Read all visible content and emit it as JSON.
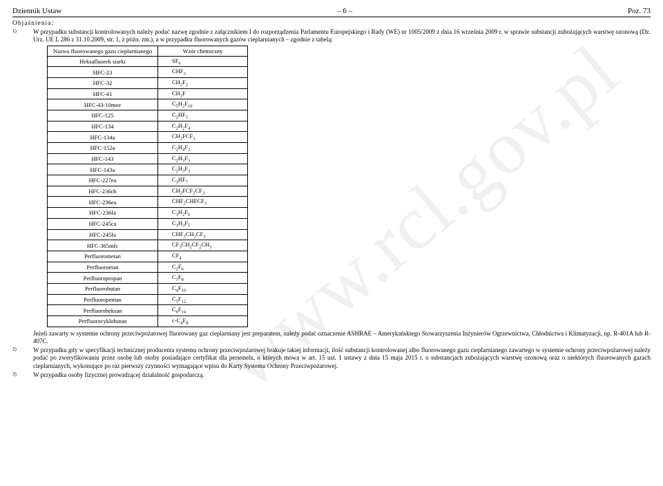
{
  "watermark": "www.rcl.gov.pl",
  "header": {
    "left": "Dziennik Ustaw",
    "center": "– 6 –",
    "right": "Poz. 73"
  },
  "section_title": "Objaśnienia:",
  "notes": {
    "n1_num": "1)",
    "n1a": "W przypadku substancji kontrolowanych należy podać nazwę zgodnie z załącznikiem I do rozporządzenia Parlamentu Europejskiego i Rady (WE) nr 1005/2009 z dnia 16 września 2009 r. w sprawie substancji zubożających warstwę ozonową (Dz. Urz. UE L 286 z 31.10.2009, str. 1, z późn. zm.), a w przypadku fluorowanych gazów cieplarnianych – zgodnie z tabelą:",
    "n1b": "Jeżeli zawarty w systemie ochrony przeciwpożarowej fluorowany gaz cieplarniany jest preparatem, należy podać oznaczenie ASHRAE – Amerykańskiego Stowarzyszenia Inżynierów Ogrzewnictwa, Chłodnictwa i Klimatyzacji, np. R-401A lub R-407C.",
    "n2_num": "2)",
    "n2": "W przypadku gdy w specyfikacji technicznej producenta systemu ochrony przeciwpożarowej brakuje takiej informacji, ilość substancji kontrolowanej albo fluorowanego gazu cieplarnianego zawartego w systemie ochrony przeciwpożarowej należy podać po zweryfikowaniu przez osobę lub osoby posiadające certyfikat dla personelu, o których mowa w art. 15 ust. 1 ustawy z dnia 15 maja 2015 r. o substancjach zubożających warstwę ozonową oraz o niektórych fluorowanych gazach cieplarnianych, wykonujące po raz pierwszy czynności wymagające wpisu do Karty Systemu Ochrony Przeciwpożarowej.",
    "n3_num": "3)",
    "n3": "W przypadku osoby fizycznej prowadzącej działalność gospodarczą."
  },
  "table": {
    "head_name": "Nazwa fluorowanego gazu cieplarnianego",
    "head_formula": "Wzór chemiczny",
    "rows": [
      {
        "name": "Heksafluorek siarki",
        "formula": "SF<sub>6</sub>"
      },
      {
        "name": "HFC-23",
        "formula": "CHF<sub>3</sub>"
      },
      {
        "name": "HFC-32",
        "formula": "CH<sub>2</sub>F<sub>2</sub>"
      },
      {
        "name": "HFC-41",
        "formula": "CH<sub>3</sub>F"
      },
      {
        "name": "HFC-43-10mee",
        "formula": "C<sub>5</sub>H<sub>2</sub>F<sub>10</sub>"
      },
      {
        "name": "HFC-125",
        "formula": "C<sub>2</sub>HF<sub>5</sub>"
      },
      {
        "name": "HFC-134",
        "formula": "C<sub>2</sub>H<sub>2</sub>F<sub>4</sub>"
      },
      {
        "name": "HFC-134a",
        "formula": "CH<sub>2</sub>FCF<sub>3</sub>"
      },
      {
        "name": "HFC-152a",
        "formula": "C<sub>2</sub>H<sub>4</sub>F<sub>2</sub>"
      },
      {
        "name": "HFC-143",
        "formula": "C<sub>2</sub>H<sub>3</sub>F<sub>3</sub>"
      },
      {
        "name": "HFC-143a",
        "formula": "C<sub>2</sub>H<sub>3</sub>F<sub>3</sub>"
      },
      {
        "name": "HFC-227ea",
        "formula": "C<sub>3</sub>HF<sub>7</sub>"
      },
      {
        "name": "HFC-236cb",
        "formula": "CH<sub>2</sub>FCF<sub>2</sub>CF<sub>3</sub>"
      },
      {
        "name": "HFC-236ea",
        "formula": "CHF<sub>2</sub>CHFCF<sub>3</sub>"
      },
      {
        "name": "HFC-236fa",
        "formula": "C<sub>3</sub>H<sub>2</sub>F<sub>6</sub>"
      },
      {
        "name": "HFC-245ca",
        "formula": "C<sub>3</sub>H<sub>3</sub>F<sub>5</sub>"
      },
      {
        "name": "HFC-245fa",
        "formula": "CHF<sub>2</sub>CH<sub>2</sub>CF<sub>3</sub>"
      },
      {
        "name": "HFC-365mfc",
        "formula": "CF<sub>3</sub>CH<sub>2</sub>CF<sub>2</sub>CH<sub>3</sub>"
      },
      {
        "name": "Perfluorometan",
        "formula": "CF<sub>4</sub>"
      },
      {
        "name": "Perfluoroetan",
        "formula": "C<sub>2</sub>F<sub>6</sub>"
      },
      {
        "name": "Perfluoropropan",
        "formula": "C<sub>3</sub>F<sub>8</sub>"
      },
      {
        "name": "Perfluorobutan",
        "formula": "C<sub>4</sub>F<sub>10</sub>"
      },
      {
        "name": "Perfluoropentan",
        "formula": "C<sub>5</sub>F<sub>12</sub>"
      },
      {
        "name": "Perfluoroheksan",
        "formula": "C<sub>6</sub>F<sub>14</sub>"
      },
      {
        "name": "Perfluorocyklobutan",
        "formula": "c-C<sub>4</sub>F<sub>8</sub>"
      }
    ]
  }
}
